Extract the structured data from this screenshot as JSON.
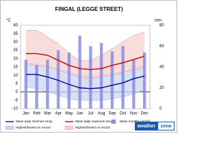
{
  "chart_data": {
    "type": "climate",
    "title": "FINGAL (LEGGE STREET)",
    "y_unit": "°C",
    "y2_unit": "mm",
    "categories": [
      "Jan",
      "Feb",
      "Mar",
      "Apr",
      "May",
      "Jun",
      "Jul",
      "Aug",
      "Sep",
      "Oct",
      "Nov",
      "Dec"
    ],
    "ylim": [
      -10,
      40
    ],
    "yticks": [
      -10,
      -5,
      0,
      5,
      10,
      15,
      20,
      25,
      30,
      35,
      40
    ],
    "y2lim": [
      0,
      80
    ],
    "y2ticks": [
      0,
      20,
      40,
      60,
      80
    ],
    "bands": [
      {
        "name": "Highest/lowest on record",
        "color": "#c7d3f2",
        "edge": "#9fb0e0",
        "upper": [
          17,
          17,
          16,
          14,
          12,
          10,
          9,
          10,
          11,
          12,
          14,
          16
        ],
        "lower": [
          3,
          2,
          0,
          -2,
          -4,
          -5,
          -5,
          -5,
          -4,
          -3,
          -1,
          1
        ]
      },
      {
        "name": "Highest/lowest on record",
        "color": "#f6cdcd",
        "edge": "#eaa0a0",
        "upper": [
          37,
          37,
          33,
          29,
          23,
          19,
          19,
          22,
          26,
          30,
          34,
          36
        ],
        "lower": [
          17,
          16,
          15,
          13,
          11,
          9,
          8,
          9,
          10,
          12,
          13,
          15
        ]
      }
    ],
    "series": [
      {
        "name": "Mean daily minimum temp",
        "kind": "line",
        "color": "#000099",
        "values": [
          10.5,
          10.5,
          9,
          7,
          4.5,
          2.5,
          2,
          2.5,
          4,
          5.5,
          8,
          9.5
        ]
      },
      {
        "name": "Mean daily maximum temp",
        "kind": "line",
        "color": "#c00000",
        "values": [
          23,
          23,
          22,
          19,
          16,
          14,
          13.5,
          14,
          16,
          17.5,
          19.5,
          21.5
        ]
      },
      {
        "name": "Mean monthly rainfall",
        "kind": "bar",
        "axis": "y2",
        "color": "#8c8ce0",
        "values": [
          47,
          42,
          47,
          56,
          54,
          70,
          60,
          63,
          55,
          60,
          47,
          54
        ]
      }
    ],
    "logo": {
      "left": "weather",
      "right": "zone"
    }
  }
}
